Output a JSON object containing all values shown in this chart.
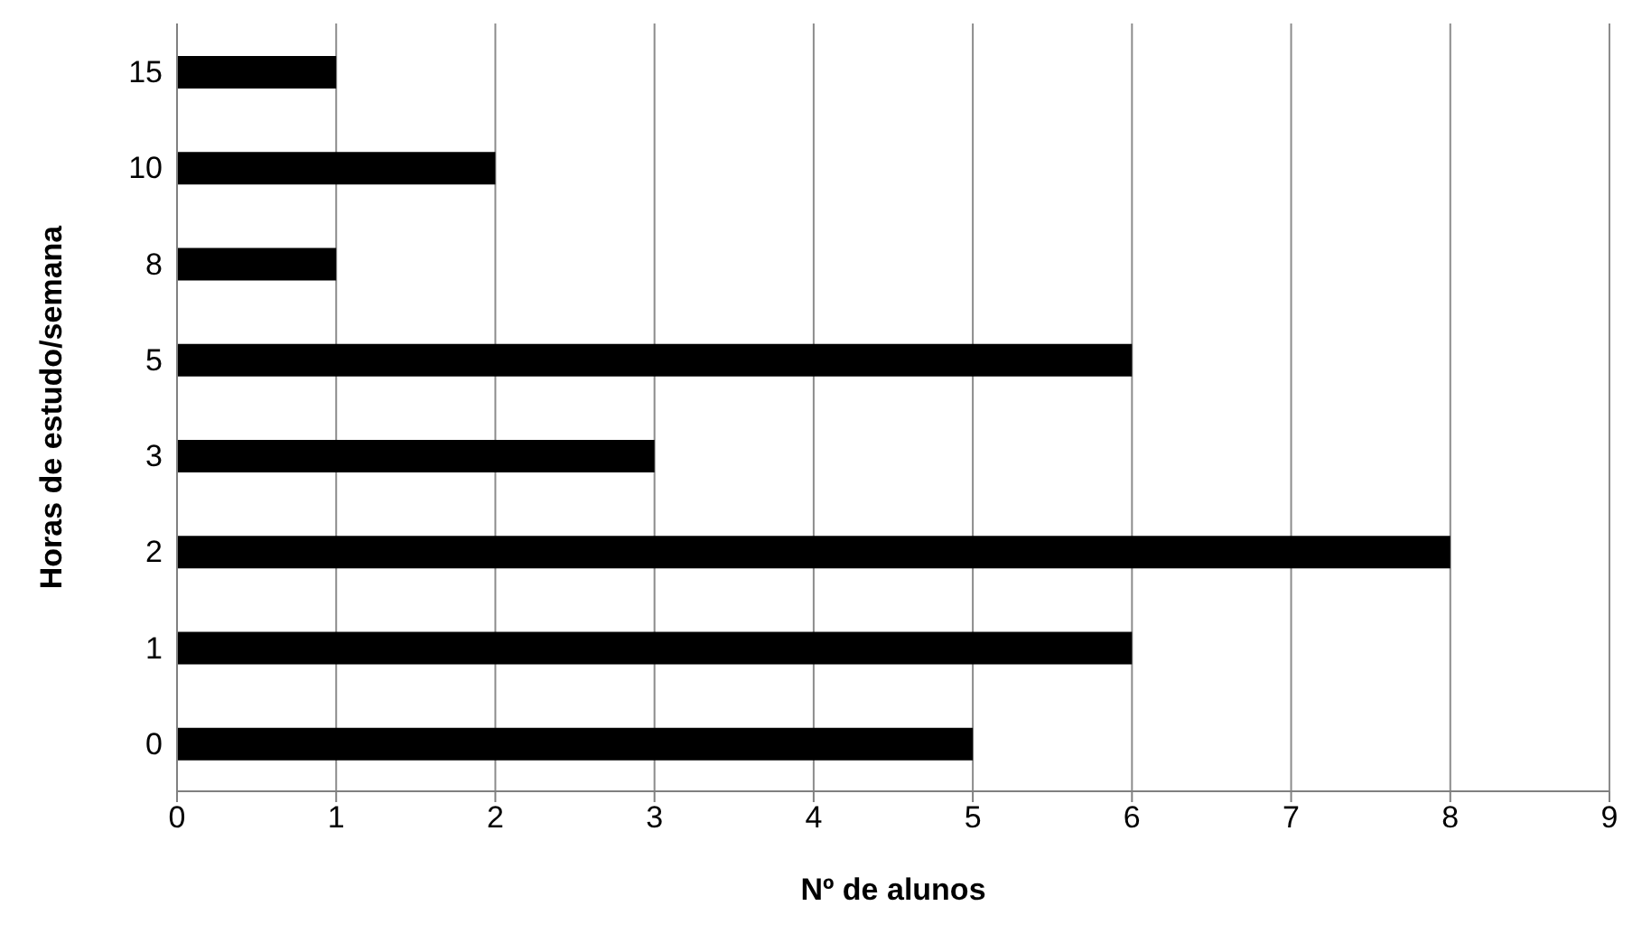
{
  "chart_data": {
    "type": "bar",
    "orientation": "horizontal",
    "xlabel": "Nº de alunos",
    "ylabel": "Horas de estudo/semana",
    "categories": [
      "15",
      "10",
      "8",
      "5",
      "3",
      "2",
      "1",
      "0"
    ],
    "values": [
      1,
      2,
      1,
      6,
      3,
      8,
      6,
      5
    ],
    "color": "#000000",
    "xlim": [
      0,
      9
    ],
    "xticks": [
      0,
      1,
      2,
      3,
      4,
      5,
      6,
      7,
      8,
      9
    ],
    "grid": "x"
  }
}
